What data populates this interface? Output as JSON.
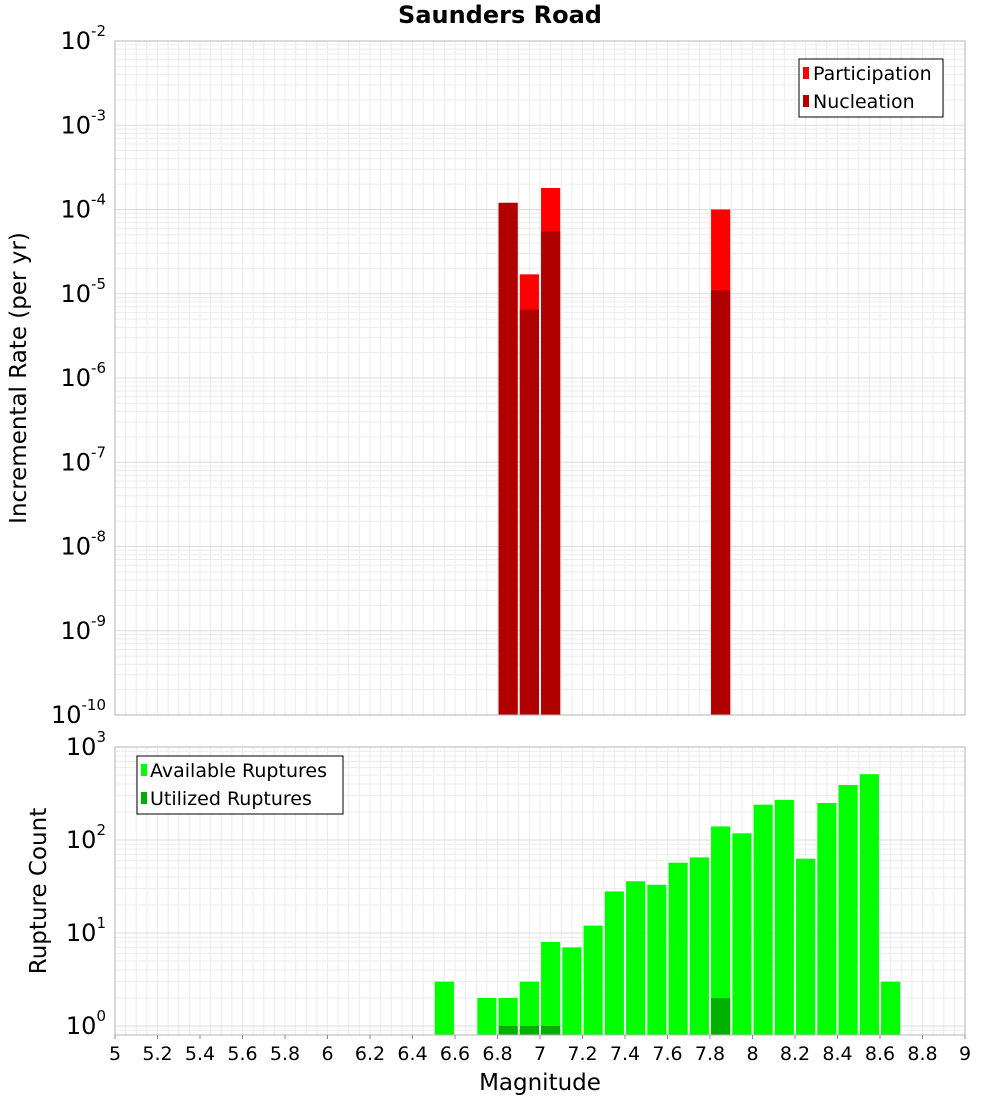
{
  "chart_data": [
    {
      "type": "bar",
      "title": "Saunders Road",
      "xlabel": "Magnitude",
      "ylabel": "Incremental Rate (per yr)",
      "y_scale": "log",
      "ylim": [
        1e-10,
        0.01
      ],
      "yticks": [
        {
          "base": "10",
          "exp": "-2",
          "value": 0.01
        },
        {
          "base": "10",
          "exp": "-3",
          "value": 0.001
        },
        {
          "base": "10",
          "exp": "-4",
          "value": 0.0001
        },
        {
          "base": "10",
          "exp": "-5",
          "value": 1e-05
        },
        {
          "base": "10",
          "exp": "-6",
          "value": 1e-06
        },
        {
          "base": "10",
          "exp": "-7",
          "value": 1e-07
        },
        {
          "base": "10",
          "exp": "-8",
          "value": 1e-08
        },
        {
          "base": "10",
          "exp": "-9",
          "value": 1e-09
        },
        {
          "base": "10",
          "exp": "-10",
          "value": 1e-10
        }
      ],
      "legend_position": "top-right",
      "grid": true,
      "series": [
        {
          "name": "Participation",
          "color": "#ff0000",
          "points": [
            {
              "x": 6.85,
              "y": 0.00012
            },
            {
              "x": 6.95,
              "y": 1.7e-05
            },
            {
              "x": 7.05,
              "y": 0.00018
            },
            {
              "x": 7.85,
              "y": 0.0001
            }
          ]
        },
        {
          "name": "Nucleation",
          "color": "#b00000",
          "points": [
            {
              "x": 6.85,
              "y": 0.00012
            },
            {
              "x": 6.95,
              "y": 6.5e-06
            },
            {
              "x": 7.05,
              "y": 5.5e-05
            },
            {
              "x": 7.85,
              "y": 1.1e-05
            }
          ]
        }
      ]
    },
    {
      "type": "bar",
      "xlabel": "Magnitude",
      "ylabel": "Rupture Count",
      "y_scale": "log",
      "ylim": [
        0.8,
        1000
      ],
      "xlim": [
        5,
        9
      ],
      "yticks": [
        {
          "base": "10",
          "exp": "3",
          "value": 1000
        },
        {
          "base": "10",
          "exp": "2",
          "value": 100
        },
        {
          "base": "10",
          "exp": "1",
          "value": 10
        },
        {
          "base": "10",
          "exp": "0",
          "value": 1
        }
      ],
      "xticks": [
        "5",
        "5.2",
        "5.4",
        "5.6",
        "5.8",
        "6",
        "6.2",
        "6.4",
        "6.6",
        "6.8",
        "7",
        "7.2",
        "7.4",
        "7.6",
        "7.8",
        "8",
        "8.2",
        "8.4",
        "8.6",
        "8.8",
        "9"
      ],
      "legend_position": "top-left",
      "grid": true,
      "series": [
        {
          "name": "Available Ruptures",
          "color": "#00ff00",
          "points": [
            {
              "x": 6.55,
              "y": 3
            },
            {
              "x": 6.75,
              "y": 2
            },
            {
              "x": 6.85,
              "y": 2
            },
            {
              "x": 6.95,
              "y": 3
            },
            {
              "x": 7.05,
              "y": 8
            },
            {
              "x": 7.15,
              "y": 7
            },
            {
              "x": 7.25,
              "y": 12
            },
            {
              "x": 7.35,
              "y": 28
            },
            {
              "x": 7.45,
              "y": 36
            },
            {
              "x": 7.55,
              "y": 33
            },
            {
              "x": 7.65,
              "y": 57
            },
            {
              "x": 7.75,
              "y": 65
            },
            {
              "x": 7.85,
              "y": 140
            },
            {
              "x": 7.95,
              "y": 118
            },
            {
              "x": 8.05,
              "y": 240
            },
            {
              "x": 8.15,
              "y": 270
            },
            {
              "x": 8.25,
              "y": 63
            },
            {
              "x": 8.35,
              "y": 250
            },
            {
              "x": 8.45,
              "y": 390
            },
            {
              "x": 8.55,
              "y": 510
            },
            {
              "x": 8.65,
              "y": 3
            }
          ]
        },
        {
          "name": "Utilized Ruptures",
          "color": "#00b000",
          "points": [
            {
              "x": 6.85,
              "y": 1
            },
            {
              "x": 6.95,
              "y": 1
            },
            {
              "x": 7.05,
              "y": 1
            },
            {
              "x": 7.85,
              "y": 2
            }
          ]
        }
      ]
    }
  ]
}
